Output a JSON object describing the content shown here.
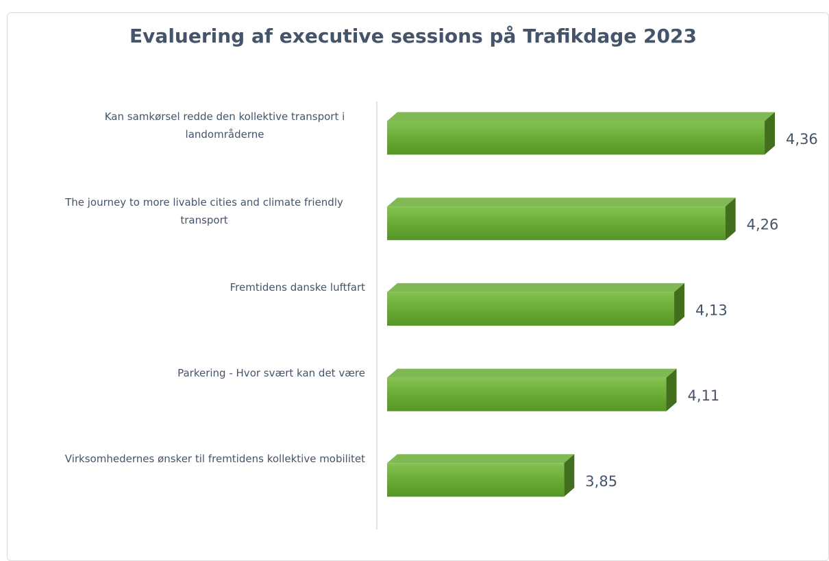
{
  "chart_data": {
    "type": "bar",
    "orientation": "horizontal",
    "title": "Evaluering af executive sessions på Trafikdage 2023",
    "categories": [
      "Kan samkørsel redde den kollektive transport i landområderne",
      "The journey to more livable cities and climate friendly transport",
      "Fremtidens danske luftfart",
      "Parkering - Hvor svært kan det være",
      "Virksomhedernes ønsker til fremtidens kollektive mobilitet"
    ],
    "values": [
      4.36,
      4.26,
      4.13,
      4.11,
      3.85
    ],
    "value_labels": [
      "4,36",
      "4,26",
      "4,13",
      "4,11",
      "3,85"
    ],
    "color": "#6aac35",
    "xlim": [
      3.4,
      4.4
    ]
  }
}
